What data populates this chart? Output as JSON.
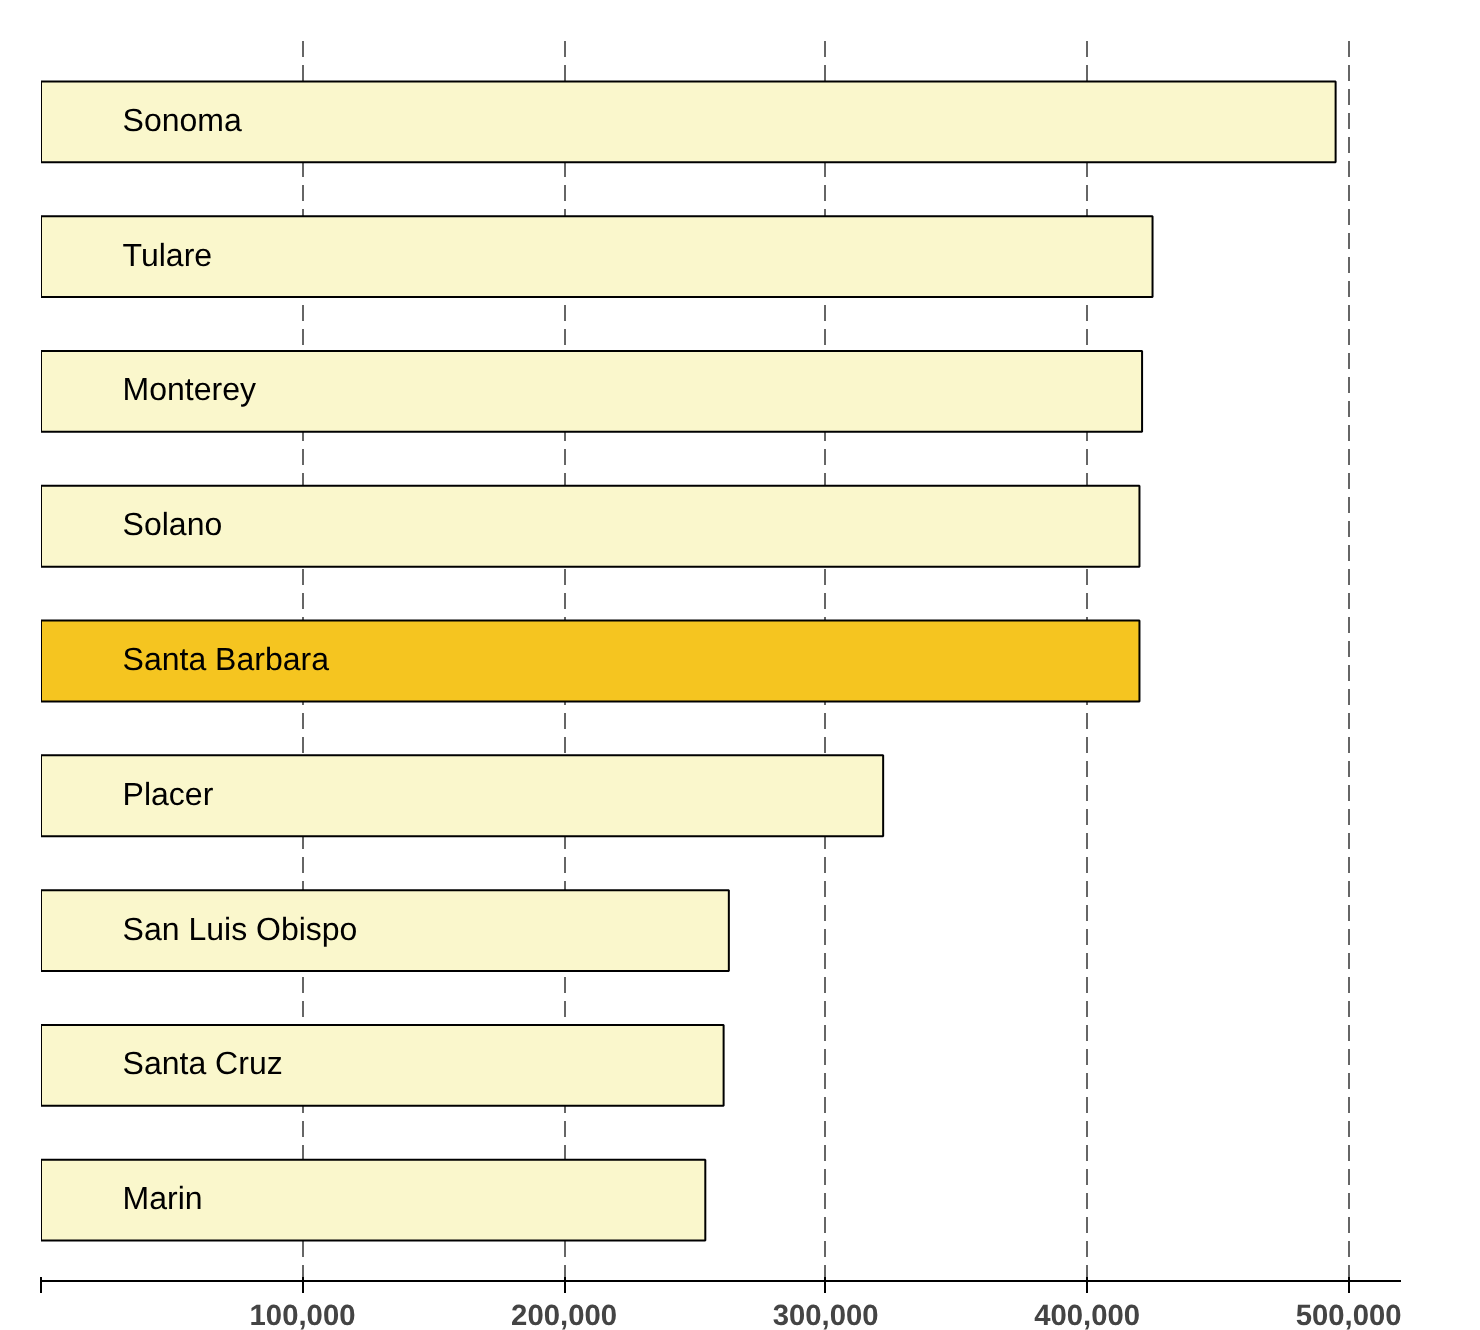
{
  "chart_data": {
    "type": "bar",
    "orientation": "horizontal",
    "categories": [
      "Sonoma",
      "Tulare",
      "Monterey",
      "Solano",
      "Santa Barbara",
      "Placer",
      "San Luis Obispo",
      "Santa Cruz",
      "Marin"
    ],
    "values": [
      495000,
      425000,
      421000,
      420000,
      420000,
      322000,
      263000,
      261000,
      254000
    ],
    "colors": [
      "#faf7cc",
      "#faf7cc",
      "#faf7cc",
      "#faf7cc",
      "#f5c520",
      "#faf7cc",
      "#faf7cc",
      "#faf7cc",
      "#faf7cc"
    ],
    "xlim": [
      0,
      520000
    ],
    "xticks": [
      {
        "value": 0,
        "label": null
      },
      {
        "value": 100000,
        "label": "100,000"
      },
      {
        "value": 200000,
        "label": "200,000"
      },
      {
        "value": 300000,
        "label": "300,000"
      },
      {
        "value": 400000,
        "label": "400,000"
      },
      {
        "value": 500000,
        "label": "500,000"
      }
    ],
    "grid": "x",
    "line_style": "dashed"
  }
}
